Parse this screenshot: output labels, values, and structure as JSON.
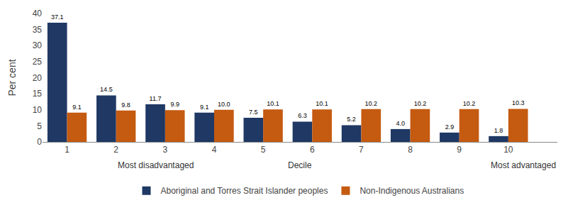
{
  "chart_data": {
    "type": "bar",
    "categories": [
      "1",
      "2",
      "3",
      "4",
      "5",
      "6",
      "7",
      "8",
      "9",
      "10"
    ],
    "series": [
      {
        "name": "Aboriginal and Torres Strait Islander peoples",
        "color": "#1F3864",
        "values": [
          37.1,
          14.5,
          11.7,
          9.1,
          7.5,
          6.3,
          5.2,
          4.0,
          2.9,
          1.8
        ],
        "value_labels": [
          "37.1",
          "14.5",
          "11.7",
          "9.1",
          "7.5",
          "6.3",
          "5.2",
          "4.0",
          "2.9",
          "1.8"
        ]
      },
      {
        "name": "Non-Indigenous Australians",
        "color": "#C55A11",
        "values": [
          9.1,
          9.8,
          9.9,
          10.0,
          10.1,
          10.1,
          10.2,
          10.2,
          10.2,
          10.3
        ],
        "value_labels": [
          "9.1",
          "9.8",
          "9.9",
          "10.0",
          "10.1",
          "10.1",
          "10.2",
          "10.2",
          "10.2",
          "10.3"
        ]
      }
    ],
    "ylabel": "Per cent",
    "xlabel": "Decile",
    "annotations": [
      "Most disadvantaged",
      "Most advantaged"
    ],
    "ylim": [
      0,
      40
    ],
    "yticks": [
      0,
      5,
      10,
      15,
      20,
      25,
      30,
      35,
      40
    ],
    "grid": false,
    "legend": "bottom",
    "data_labels": true
  }
}
